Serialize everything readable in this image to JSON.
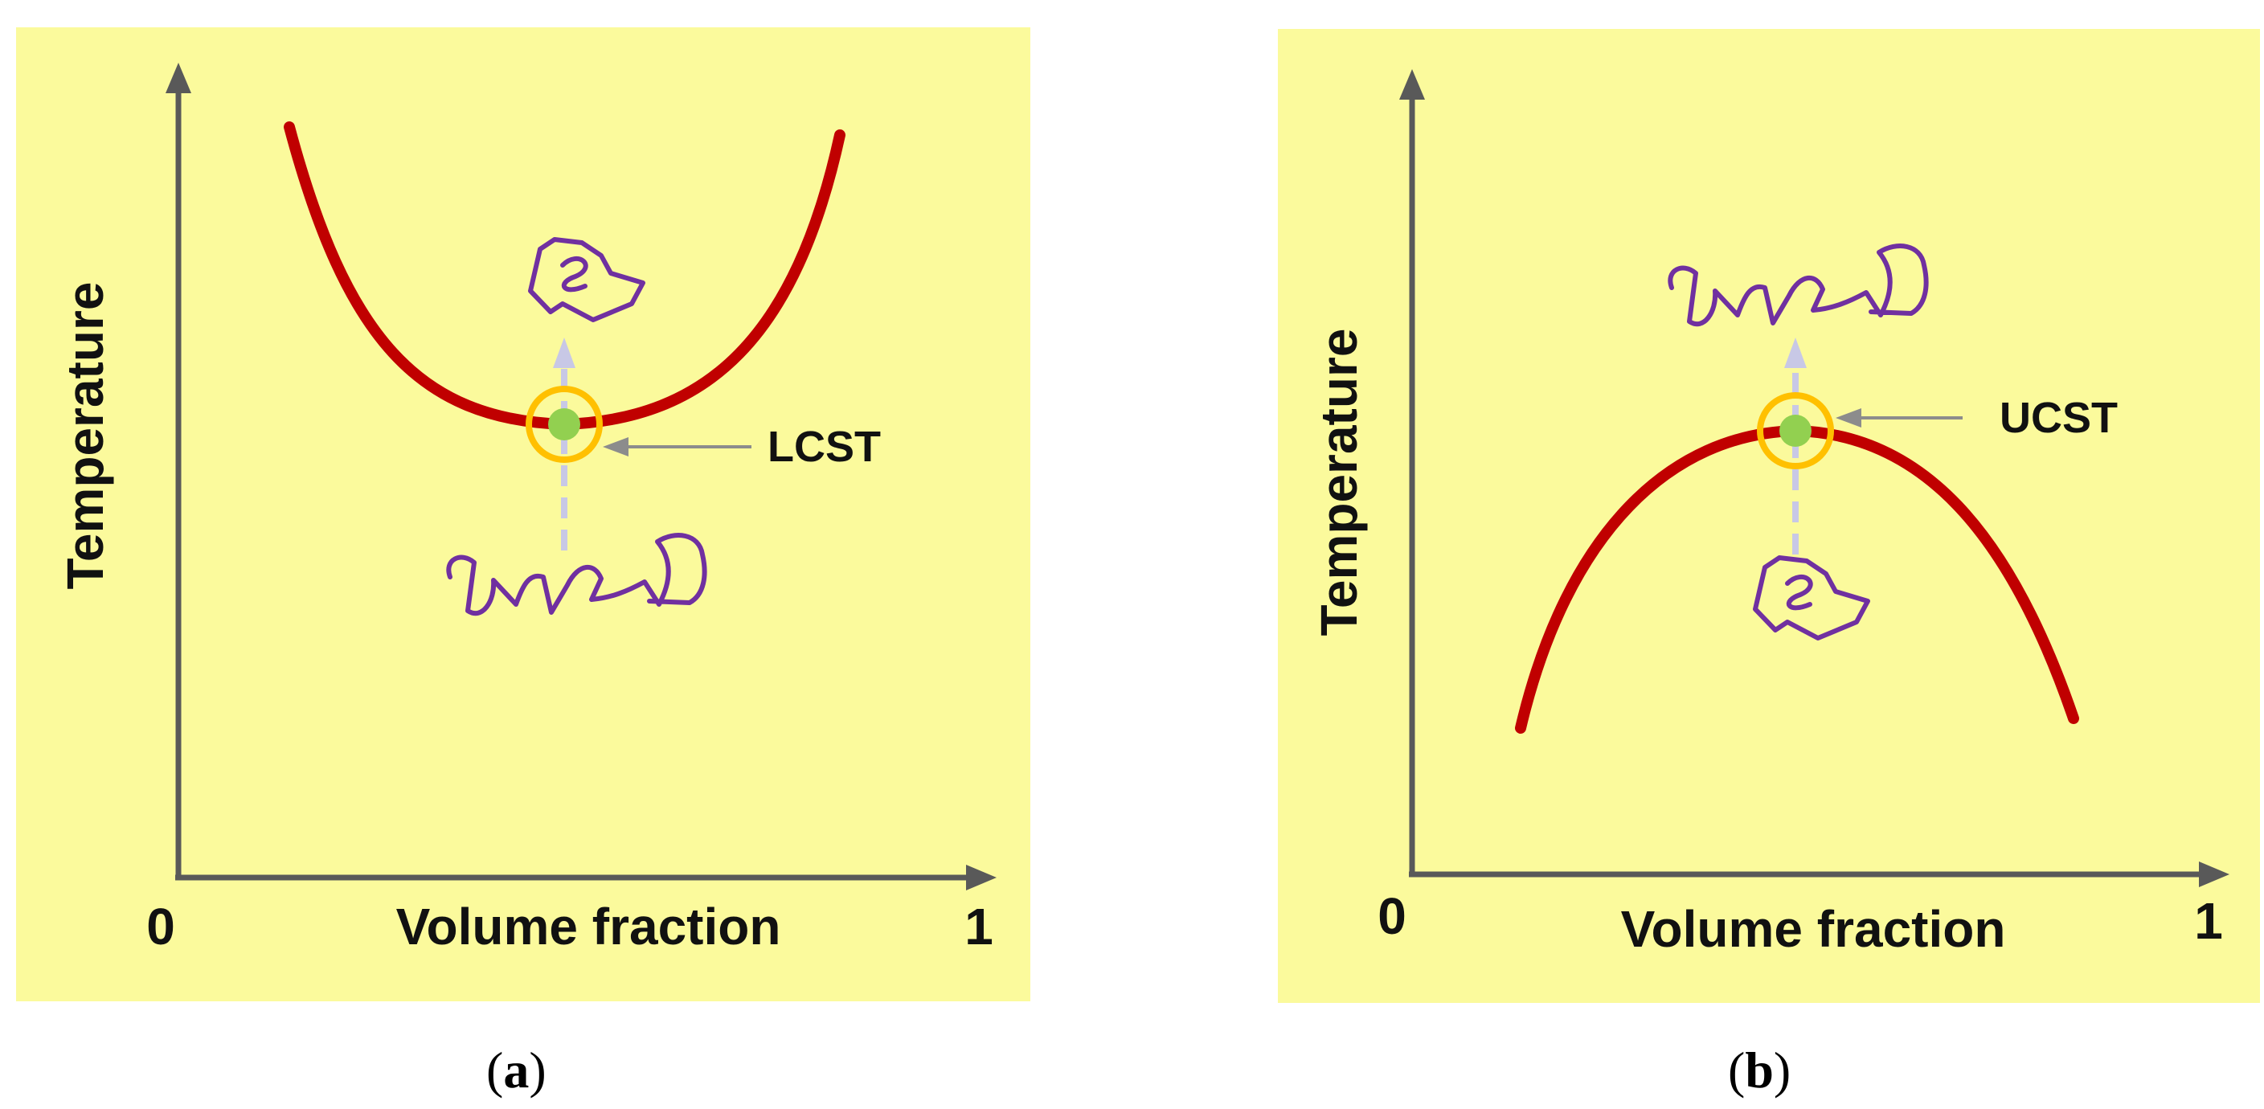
{
  "panels": [
    {
      "id": "a",
      "caption_label": "a",
      "y_axis_label": "Temperature",
      "x_axis_label": "Volume fraction",
      "x_min_label": "0",
      "x_max_label": "1",
      "critical_point_label": "LCST",
      "curve_shape": "U-shaped (convex)",
      "colors": {
        "background": "#fbfa9c",
        "curve": "#c00000",
        "point": "#92d050",
        "ring": "#ffc000",
        "polymer": "#7030a0",
        "arrow": "#c8c8e6"
      }
    },
    {
      "id": "b",
      "caption_label": "b",
      "y_axis_label": "Temperature",
      "x_axis_label": "Volume fraction",
      "x_min_label": "0",
      "x_max_label": "1",
      "critical_point_label": "UCST",
      "curve_shape": "inverted U (concave)",
      "colors": {
        "background": "#fbfa9c",
        "curve": "#c00000",
        "point": "#92d050",
        "ring": "#ffc000",
        "polymer": "#7030a0",
        "arrow": "#c8c8e6"
      }
    }
  ]
}
